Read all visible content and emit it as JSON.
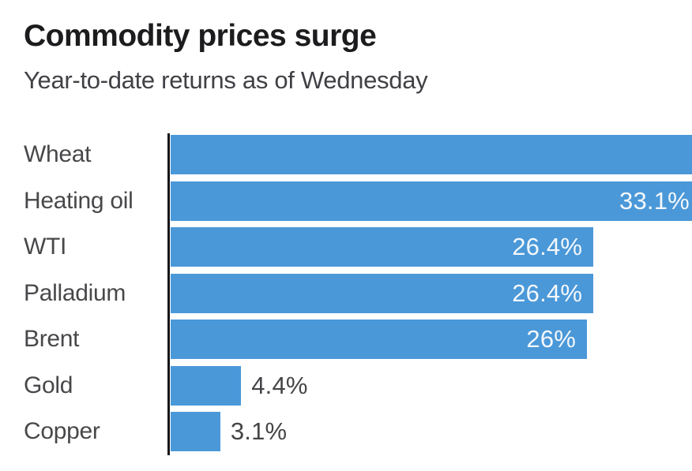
{
  "header": {
    "title": "Commodity prices surge",
    "subtitle": "Year-to-date returns as of Wednesday"
  },
  "chart_data": {
    "type": "bar",
    "orientation": "horizontal",
    "title": "Commodity prices surge",
    "subtitle": "Year-to-date returns as of Wednesday",
    "categories": [
      "Wheat",
      "Heating oil",
      "WTI",
      "Palladium",
      "Brent",
      "Gold",
      "Copper"
    ],
    "values": [
      null,
      33.1,
      26.4,
      26.4,
      26,
      4.4,
      3.1
    ],
    "bars": [
      {
        "category": "Wheat",
        "value": null,
        "label": "",
        "clipped": true,
        "label_position": "none"
      },
      {
        "category": "Heating oil",
        "value": 33.1,
        "label": "33.1%",
        "clipped": true,
        "label_position": "inside"
      },
      {
        "category": "WTI",
        "value": 26.4,
        "label": "26.4%",
        "clipped": false,
        "label_position": "inside"
      },
      {
        "category": "Palladium",
        "value": 26.4,
        "label": "26.4%",
        "clipped": false,
        "label_position": "inside"
      },
      {
        "category": "Brent",
        "value": 26,
        "label": "26%",
        "clipped": false,
        "label_position": "inside"
      },
      {
        "category": "Gold",
        "value": 4.4,
        "label": "4.4%",
        "clipped": false,
        "label_position": "outside"
      },
      {
        "category": "Copper",
        "value": 3.1,
        "label": "3.1%",
        "clipped": false,
        "label_position": "outside"
      }
    ],
    "xlim_visible": [
      0,
      32.6
    ],
    "grid": false,
    "legend": "none",
    "note": "Wheat and Heating oil bars are clipped at the right edge of the image; Wheat's value label is not visible."
  },
  "colors": {
    "bar": "#4a98d8",
    "axis": "#151517",
    "title_text": "#1c1c1e",
    "subtitle_text": "#414045",
    "category_text": "#48484b",
    "value_inside_text": "#f4f8fc",
    "value_outside_text": "#454548",
    "background": "#ffffff"
  }
}
